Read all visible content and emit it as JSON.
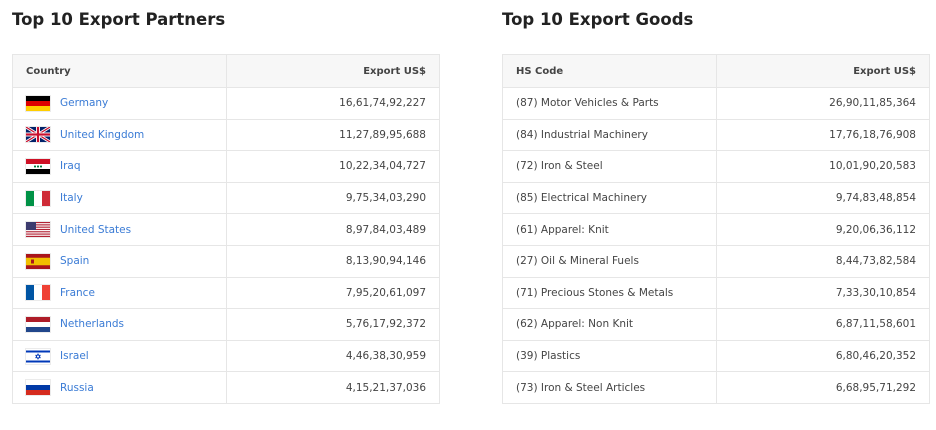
{
  "partners": {
    "title": "Top 10 Export Partners",
    "col_country": "Country",
    "col_value": "Export US$",
    "rows": [
      {
        "country": "Germany",
        "value": "16,61,74,92,227",
        "flag": "de"
      },
      {
        "country": "United Kingdom",
        "value": "11,27,89,95,688",
        "flag": "gb"
      },
      {
        "country": "Iraq",
        "value": "10,22,34,04,727",
        "flag": "iq"
      },
      {
        "country": "Italy",
        "value": "9,75,34,03,290",
        "flag": "it"
      },
      {
        "country": "United States",
        "value": "8,97,84,03,489",
        "flag": "us"
      },
      {
        "country": "Spain",
        "value": "8,13,90,94,146",
        "flag": "es"
      },
      {
        "country": "France",
        "value": "7,95,20,61,097",
        "flag": "fr"
      },
      {
        "country": "Netherlands",
        "value": "5,76,17,92,372",
        "flag": "nl"
      },
      {
        "country": "Israel",
        "value": "4,46,38,30,959",
        "flag": "il"
      },
      {
        "country": "Russia",
        "value": "4,15,21,37,036",
        "flag": "ru"
      }
    ]
  },
  "goods": {
    "title": "Top 10 Export Goods",
    "col_code": "HS Code",
    "col_value": "Export US$",
    "rows": [
      {
        "label": "(87) Motor Vehicles & Parts",
        "value": "26,90,11,85,364"
      },
      {
        "label": "(84) Industrial Machinery",
        "value": "17,76,18,76,908"
      },
      {
        "label": "(72) Iron & Steel",
        "value": "10,01,90,20,583"
      },
      {
        "label": "(85) Electrical Machinery",
        "value": "9,74,83,48,854"
      },
      {
        "label": "(61) Apparel: Knit",
        "value": "9,20,06,36,112"
      },
      {
        "label": "(27) Oil & Mineral Fuels",
        "value": "8,44,73,82,584"
      },
      {
        "label": "(71) Precious Stones & Metals",
        "value": "7,33,30,10,854"
      },
      {
        "label": "(62) Apparel: Non Knit",
        "value": "6,87,11,58,601"
      },
      {
        "label": "(39) Plastics",
        "value": "6,80,46,20,352"
      },
      {
        "label": "(73) Iron & Steel Articles",
        "value": "6,68,95,71,292"
      }
    ]
  },
  "colors": {
    "link": "#3a7bd5",
    "header_bg": "#f7f7f7",
    "border": "#e6e6e6"
  }
}
